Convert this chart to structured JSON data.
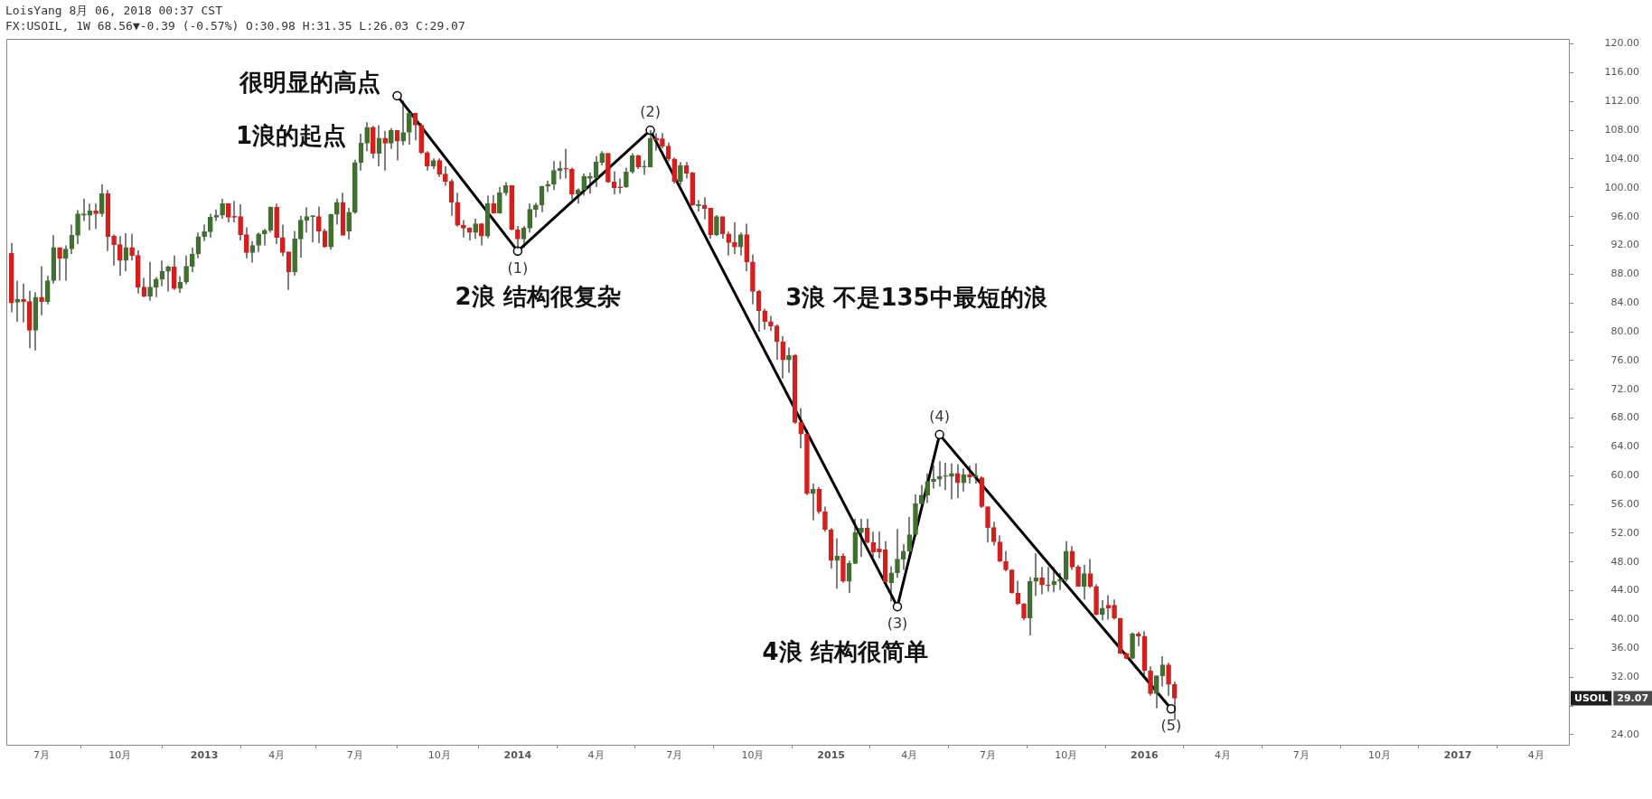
{
  "chart_data": {
    "type": "candlestick",
    "title": "LoisYang 8月 06, 2018 00:37 CST",
    "subtitle": "FX:USOIL, 1W 68.56▼-0.39 (-0.57%) O:30.98 H:31.35 L:26.03 C:29.07",
    "x": [
      "2012-05-28",
      "2012-06-04",
      "2012-06-11",
      "2012-06-18",
      "2012-06-25",
      "2012-07-02",
      "2012-07-09",
      "2012-07-16",
      "2012-07-23",
      "2012-07-30",
      "2012-08-06",
      "2012-08-13",
      "2012-08-20",
      "2012-08-27",
      "2012-09-03",
      "2012-09-10",
      "2012-09-17",
      "2012-09-24",
      "2012-10-01",
      "2012-10-08",
      "2012-10-15",
      "2012-10-22",
      "2012-10-29",
      "2012-11-05",
      "2012-11-12",
      "2012-11-19",
      "2012-11-26",
      "2012-12-03",
      "2012-12-10",
      "2012-12-17",
      "2012-12-24",
      "2012-12-31",
      "2013-01-07",
      "2013-01-14",
      "2013-01-21",
      "2013-01-28",
      "2013-02-04",
      "2013-02-11",
      "2013-02-18",
      "2013-02-25",
      "2013-03-04",
      "2013-03-11",
      "2013-03-18",
      "2013-03-25",
      "2013-04-01",
      "2013-04-08",
      "2013-04-15",
      "2013-04-22",
      "2013-04-29",
      "2013-05-06",
      "2013-05-13",
      "2013-05-20",
      "2013-05-27",
      "2013-06-03",
      "2013-06-10",
      "2013-06-17",
      "2013-06-24",
      "2013-07-01",
      "2013-07-08",
      "2013-07-15",
      "2013-07-22",
      "2013-07-29",
      "2013-08-05",
      "2013-08-12",
      "2013-08-19",
      "2013-08-26",
      "2013-09-02",
      "2013-09-09",
      "2013-09-16",
      "2013-09-23",
      "2013-09-30",
      "2013-10-07",
      "2013-10-14",
      "2013-10-21",
      "2013-10-28",
      "2013-11-04",
      "2013-11-11",
      "2013-11-18",
      "2013-11-25",
      "2013-12-02",
      "2013-12-09",
      "2013-12-16",
      "2013-12-23",
      "2013-12-30",
      "2014-01-06",
      "2014-01-13",
      "2014-01-20",
      "2014-01-27",
      "2014-02-03",
      "2014-02-10",
      "2014-02-17",
      "2014-02-24",
      "2014-03-03",
      "2014-03-10",
      "2014-03-17",
      "2014-03-24",
      "2014-03-31",
      "2014-04-07",
      "2014-04-14",
      "2014-04-21",
      "2014-04-28",
      "2014-05-05",
      "2014-05-12",
      "2014-05-19",
      "2014-05-26",
      "2014-06-02",
      "2014-06-09",
      "2014-06-16",
      "2014-06-23",
      "2014-06-30",
      "2014-07-07",
      "2014-07-14",
      "2014-07-21",
      "2014-07-28",
      "2014-08-04",
      "2014-08-11",
      "2014-08-18",
      "2014-08-25",
      "2014-09-01",
      "2014-09-08",
      "2014-09-15",
      "2014-09-22",
      "2014-09-29",
      "2014-10-06",
      "2014-10-13",
      "2014-10-20",
      "2014-10-27",
      "2014-11-03",
      "2014-11-10",
      "2014-11-17",
      "2014-11-24",
      "2014-12-01",
      "2014-12-08",
      "2014-12-15",
      "2014-12-22",
      "2014-12-29",
      "2015-01-05",
      "2015-01-12",
      "2015-01-19",
      "2015-01-26",
      "2015-02-02",
      "2015-02-09",
      "2015-02-16",
      "2015-02-23",
      "2015-03-02",
      "2015-03-09",
      "2015-03-16",
      "2015-03-23",
      "2015-03-30",
      "2015-04-06",
      "2015-04-13",
      "2015-04-20",
      "2015-04-27",
      "2015-05-04",
      "2015-05-11",
      "2015-05-18",
      "2015-05-25",
      "2015-06-01",
      "2015-06-08",
      "2015-06-15",
      "2015-06-22",
      "2015-06-29",
      "2015-07-06",
      "2015-07-13",
      "2015-07-20",
      "2015-07-27",
      "2015-08-03",
      "2015-08-10",
      "2015-08-17",
      "2015-08-24",
      "2015-08-31",
      "2015-09-07",
      "2015-09-14",
      "2015-09-21",
      "2015-09-28",
      "2015-10-05",
      "2015-10-12",
      "2015-10-19",
      "2015-10-26",
      "2015-11-02",
      "2015-11-09",
      "2015-11-16",
      "2015-11-23",
      "2015-11-30",
      "2015-12-07",
      "2015-12-14",
      "2015-12-21",
      "2015-12-28",
      "2016-01-04",
      "2016-01-11",
      "2016-01-18",
      "2016-01-25",
      "2016-02-01",
      "2016-02-08"
    ],
    "ohlc": [
      [
        90.9,
        92.3,
        82.7,
        84.0
      ],
      [
        84.1,
        87.1,
        81.4,
        84.5
      ],
      [
        84.5,
        86.7,
        81.3,
        84.2
      ],
      [
        84.2,
        85.7,
        77.7,
        80.2
      ],
      [
        80.2,
        85.5,
        77.4,
        84.8
      ],
      [
        84.8,
        89.1,
        82.3,
        84.2
      ],
      [
        84.2,
        87.8,
        83.8,
        87.1
      ],
      [
        87.1,
        93.4,
        86.7,
        91.7
      ],
      [
        91.7,
        91.7,
        87.1,
        90.2
      ],
      [
        90.2,
        92.0,
        87.1,
        91.5
      ],
      [
        91.5,
        94.9,
        90.8,
        93.4
      ],
      [
        93.4,
        96.9,
        92.2,
        96.4
      ],
      [
        96.2,
        98.5,
        95.4,
        96.4
      ],
      [
        96.2,
        97.8,
        94.1,
        96.8
      ],
      [
        96.8,
        97.8,
        94.3,
        96.4
      ],
      [
        96.4,
        100.5,
        96.0,
        99.2
      ],
      [
        99.2,
        99.7,
        91.2,
        93.2
      ],
      [
        93.3,
        93.5,
        89.2,
        92.1
      ],
      [
        92.1,
        93.3,
        87.8,
        89.9
      ],
      [
        89.9,
        93.7,
        88.4,
        91.7
      ],
      [
        91.7,
        93.6,
        89.9,
        90.6
      ],
      [
        90.6,
        91.3,
        85.3,
        86.2
      ],
      [
        86.2,
        87.5,
        84.8,
        84.9
      ],
      [
        84.9,
        89.7,
        84.3,
        86.2
      ],
      [
        86.2,
        87.6,
        84.8,
        87.3
      ],
      [
        87.3,
        89.9,
        86.3,
        88.4
      ],
      [
        88.4,
        89.2,
        85.6,
        89.0
      ],
      [
        89.0,
        90.6,
        85.8,
        86.0
      ],
      [
        86.0,
        87.7,
        85.4,
        86.9
      ],
      [
        86.9,
        90.6,
        86.6,
        89.1
      ],
      [
        89.1,
        91.7,
        88.3,
        90.8
      ],
      [
        90.8,
        93.8,
        90.2,
        93.2
      ],
      [
        93.2,
        94.9,
        92.6,
        93.9
      ],
      [
        93.9,
        96.4,
        93.1,
        95.9
      ],
      [
        95.9,
        97.0,
        95.4,
        96.2
      ],
      [
        96.2,
        98.5,
        95.7,
        97.8
      ],
      [
        97.8,
        97.8,
        95.2,
        95.9
      ],
      [
        96.0,
        98.2,
        95.2,
        95.9
      ],
      [
        96.0,
        97.7,
        92.7,
        93.5
      ],
      [
        93.5,
        94.5,
        90.2,
        91.0
      ],
      [
        91.0,
        92.6,
        89.6,
        92.0
      ],
      [
        92.0,
        93.8,
        91.1,
        93.6
      ],
      [
        93.6,
        94.3,
        92.0,
        94.1
      ],
      [
        94.1,
        97.4,
        93.8,
        97.3
      ],
      [
        97.3,
        97.8,
        92.2,
        93.1
      ],
      [
        93.1,
        94.9,
        90.5,
        91.0
      ],
      [
        91.1,
        91.1,
        85.8,
        88.3
      ],
      [
        88.3,
        94.0,
        87.8,
        92.9
      ],
      [
        92.9,
        96.1,
        90.3,
        95.5
      ],
      [
        95.5,
        97.3,
        93.8,
        96.0
      ],
      [
        96.0,
        96.2,
        92.4,
        96.1
      ],
      [
        96.0,
        97.4,
        92.3,
        94.0
      ],
      [
        94.0,
        94.3,
        91.7,
        91.8
      ],
      [
        91.8,
        96.4,
        91.4,
        96.3
      ],
      [
        96.3,
        98.5,
        94.9,
        98.0
      ],
      [
        98.0,
        99.3,
        93.4,
        93.4
      ],
      [
        94.0,
        97.2,
        92.8,
        96.6
      ],
      [
        96.6,
        103.9,
        96.4,
        103.5
      ],
      [
        103.5,
        107.5,
        102.4,
        106.2
      ],
      [
        106.2,
        109.1,
        105.1,
        108.4
      ],
      [
        108.4,
        108.6,
        104.1,
        104.8
      ],
      [
        104.8,
        108.7,
        103.0,
        106.9
      ],
      [
        106.9,
        107.9,
        102.4,
        106.2
      ],
      [
        106.2,
        108.3,
        105.4,
        108.0
      ],
      [
        108.0,
        108.0,
        103.8,
        106.5
      ],
      [
        106.5,
        112.1,
        105.9,
        107.7
      ],
      [
        107.7,
        110.6,
        106.0,
        110.4
      ],
      [
        110.4,
        110.4,
        106.6,
        108.7
      ],
      [
        108.7,
        109.0,
        104.7,
        104.9
      ],
      [
        104.9,
        105.1,
        102.4,
        103.0
      ],
      [
        103.0,
        104.1,
        102.6,
        103.8
      ],
      [
        103.8,
        104.1,
        101.5,
        101.9
      ],
      [
        101.9,
        103.0,
        100.3,
        100.9
      ],
      [
        100.9,
        101.2,
        96.1,
        98.0
      ],
      [
        98.0,
        99.3,
        94.6,
        94.8
      ],
      [
        94.8,
        95.5,
        93.1,
        94.4
      ],
      [
        94.4,
        94.5,
        92.7,
        93.8
      ],
      [
        93.8,
        95.7,
        92.9,
        95.0
      ],
      [
        95.0,
        95.1,
        92.0,
        93.3
      ],
      [
        93.3,
        98.9,
        93.0,
        97.8
      ],
      [
        97.8,
        99.0,
        96.4,
        96.5
      ],
      [
        96.5,
        100.1,
        96.4,
        99.3
      ],
      [
        99.3,
        100.8,
        98.9,
        100.3
      ],
      [
        100.3,
        100.3,
        94.1,
        94.2
      ],
      [
        94.2,
        94.7,
        91.5,
        92.9
      ],
      [
        92.9,
        94.7,
        91.7,
        94.4
      ],
      [
        94.4,
        97.8,
        93.8,
        97.0
      ],
      [
        97.0,
        97.9,
        95.9,
        97.6
      ],
      [
        97.6,
        100.3,
        96.6,
        100.2
      ],
      [
        100.2,
        101.0,
        99.4,
        100.5
      ],
      [
        100.5,
        103.7,
        99.7,
        102.4
      ],
      [
        102.4,
        103.7,
        101.2,
        102.7
      ],
      [
        102.7,
        105.4,
        101.3,
        102.6
      ],
      [
        102.6,
        102.8,
        98.4,
        99.1
      ],
      [
        99.1,
        99.9,
        97.8,
        99.7
      ],
      [
        99.7,
        102.0,
        98.9,
        101.6
      ],
      [
        101.3,
        102.1,
        99.2,
        101.6
      ],
      [
        101.4,
        104.4,
        100.1,
        103.6
      ],
      [
        103.5,
        105.1,
        103.1,
        104.8
      ],
      [
        104.8,
        104.8,
        100.7,
        100.8
      ],
      [
        100.8,
        102.3,
        99.1,
        100.0
      ],
      [
        100.1,
        101.3,
        99.2,
        100.0
      ],
      [
        100.1,
        102.8,
        100.0,
        102.2
      ],
      [
        102.2,
        104.8,
        102.0,
        104.5
      ],
      [
        104.5,
        104.6,
        102.6,
        102.9
      ],
      [
        102.9,
        103.8,
        101.8,
        103.0
      ],
      [
        102.9,
        108.0,
        102.9,
        106.9
      ],
      [
        106.9,
        107.6,
        105.2,
        106.6
      ],
      [
        106.8,
        107.6,
        105.5,
        105.8
      ],
      [
        105.8,
        106.3,
        103.7,
        104.0
      ],
      [
        104.0,
        104.2,
        100.6,
        100.9
      ],
      [
        100.9,
        103.6,
        100.4,
        103.1
      ],
      [
        103.1,
        103.6,
        101.3,
        102.0
      ],
      [
        102.1,
        102.2,
        97.5,
        97.6
      ],
      [
        97.5,
        98.3,
        96.7,
        97.7
      ],
      [
        97.6,
        98.7,
        95.6,
        97.1
      ],
      [
        97.2,
        97.2,
        92.9,
        93.5
      ],
      [
        93.5,
        96.2,
        93.3,
        96.0
      ],
      [
        96.0,
        96.0,
        92.9,
        93.6
      ],
      [
        93.6,
        93.9,
        90.6,
        92.4
      ],
      [
        92.4,
        95.2,
        90.8,
        91.8
      ],
      [
        91.8,
        93.8,
        90.6,
        93.5
      ],
      [
        93.5,
        95.0,
        88.4,
        89.7
      ],
      [
        89.7,
        90.7,
        83.8,
        85.6
      ],
      [
        85.6,
        85.8,
        80.0,
        82.9
      ],
      [
        82.9,
        83.2,
        80.3,
        81.4
      ],
      [
        81.4,
        82.2,
        80.1,
        80.8
      ],
      [
        80.8,
        81.0,
        76.1,
        78.6
      ],
      [
        78.6,
        79.4,
        73.5,
        76.1
      ],
      [
        76.1,
        77.8,
        74.3,
        76.7
      ],
      [
        76.7,
        76.9,
        67.2,
        67.4
      ],
      [
        67.4,
        69.4,
        63.8,
        65.8
      ],
      [
        65.8,
        66.4,
        57.3,
        57.5
      ],
      [
        57.5,
        58.9,
        53.8,
        58.1
      ],
      [
        58.1,
        58.4,
        54.7,
        55.0
      ],
      [
        55.0,
        55.7,
        52.2,
        52.5
      ],
      [
        52.5,
        52.7,
        47.1,
        48.2
      ],
      [
        48.2,
        51.3,
        44.3,
        48.8
      ],
      [
        48.8,
        49.2,
        45.1,
        45.3
      ],
      [
        45.3,
        48.2,
        43.7,
        47.8
      ],
      [
        47.8,
        54.0,
        47.7,
        52.1
      ],
      [
        52.1,
        54.0,
        48.7,
        52.7
      ],
      [
        52.7,
        54.0,
        50.6,
        50.7
      ],
      [
        50.7,
        52.2,
        48.7,
        49.4
      ],
      [
        49.8,
        52.2,
        48.5,
        49.4
      ],
      [
        49.7,
        50.9,
        44.6,
        45.2
      ],
      [
        45.1,
        47.4,
        42.5,
        46.5
      ],
      [
        46.5,
        52.6,
        45.8,
        48.4
      ],
      [
        48.4,
        50.5,
        46.9,
        49.5
      ],
      [
        49.5,
        54.3,
        49.5,
        51.8
      ],
      [
        51.8,
        57.4,
        51.5,
        56.1
      ],
      [
        56.1,
        58.7,
        55.9,
        57.3
      ],
      [
        57.3,
        60.3,
        56.2,
        59.2
      ],
      [
        59.2,
        61.4,
        58.2,
        59.5
      ],
      [
        59.5,
        62.0,
        58.5,
        59.9
      ],
      [
        59.9,
        61.8,
        58.0,
        60.0
      ],
      [
        59.9,
        61.7,
        56.7,
        60.3
      ],
      [
        60.3,
        61.6,
        56.9,
        59.0
      ],
      [
        59.0,
        61.0,
        57.8,
        60.1
      ],
      [
        60.1,
        61.4,
        58.9,
        59.8
      ],
      [
        59.8,
        61.7,
        58.9,
        60.0
      ],
      [
        59.7,
        59.9,
        55.5,
        55.7
      ],
      [
        55.7,
        55.7,
        50.7,
        52.8
      ],
      [
        52.8,
        53.6,
        50.3,
        50.8
      ],
      [
        50.8,
        51.7,
        48.0,
        48.1
      ],
      [
        48.1,
        49.5,
        46.7,
        46.9
      ],
      [
        46.9,
        47.0,
        43.6,
        43.7
      ],
      [
        43.7,
        45.4,
        42.0,
        42.2
      ],
      [
        42.2,
        42.3,
        39.9,
        40.2
      ],
      [
        40.2,
        45.9,
        37.8,
        45.3
      ],
      [
        45.3,
        49.2,
        43.3,
        45.8
      ],
      [
        45.8,
        47.3,
        43.5,
        44.8
      ],
      [
        44.8,
        47.3,
        43.9,
        44.7
      ],
      [
        44.8,
        47.3,
        43.8,
        45.3
      ],
      [
        45.3,
        46.5,
        44.1,
        45.6
      ],
      [
        45.6,
        50.9,
        45.3,
        49.5
      ],
      [
        49.5,
        50.2,
        46.9,
        47.3
      ],
      [
        47.3,
        47.6,
        44.6,
        44.6
      ],
      [
        44.6,
        47.6,
        42.8,
        46.4
      ],
      [
        46.4,
        48.4,
        44.4,
        44.6
      ],
      [
        44.6,
        44.9,
        40.6,
        40.7
      ],
      [
        40.7,
        42.7,
        39.9,
        41.6
      ],
      [
        42.0,
        43.4,
        40.0,
        41.6
      ],
      [
        42.0,
        42.8,
        40.0,
        40.2
      ],
      [
        40.2,
        40.2,
        35.2,
        35.3
      ],
      [
        35.3,
        35.4,
        34.5,
        34.6
      ],
      [
        34.6,
        38.2,
        34.5,
        38.0
      ],
      [
        38.0,
        38.3,
        36.3,
        37.7
      ],
      [
        37.7,
        38.4,
        32.2,
        32.9
      ],
      [
        32.9,
        33.5,
        29.4,
        29.7
      ],
      [
        29.7,
        32.2,
        27.7,
        32.2
      ],
      [
        32.2,
        34.9,
        30.7,
        33.7
      ],
      [
        33.7,
        34.0,
        29.4,
        31.0
      ],
      [
        30.98,
        31.35,
        26.03,
        29.07
      ]
    ],
    "colors": [
      "#d2201f",
      "#40702f",
      "#d2201f",
      "#d2201f",
      "#40702f",
      "#d2201f",
      "#40702f",
      "#40702f",
      "#d2201f",
      "#40702f",
      "#40702f",
      "#40702f",
      "#40702f",
      "#40702f",
      "#d2201f",
      "#40702f",
      "#d2201f",
      "#d2201f",
      "#d2201f",
      "#40702f",
      "#d2201f",
      "#d2201f",
      "#d2201f",
      "#40702f",
      "#40702f",
      "#40702f",
      "#40702f",
      "#d2201f",
      "#40702f",
      "#40702f",
      "#40702f",
      "#40702f",
      "#40702f",
      "#40702f",
      "#40702f",
      "#40702f",
      "#d2201f",
      "#d2201f",
      "#d2201f",
      "#d2201f",
      "#40702f",
      "#40702f",
      "#40702f",
      "#40702f",
      "#d2201f",
      "#d2201f",
      "#d2201f",
      "#40702f",
      "#40702f",
      "#40702f",
      "#40702f",
      "#d2201f",
      "#d2201f",
      "#40702f",
      "#40702f",
      "#d2201f",
      "#40702f",
      "#40702f",
      "#40702f",
      "#40702f",
      "#d2201f",
      "#40702f",
      "#d2201f",
      "#40702f",
      "#d2201f",
      "#40702f",
      "#40702f",
      "#d2201f",
      "#d2201f",
      "#d2201f",
      "#40702f",
      "#d2201f",
      "#d2201f",
      "#d2201f",
      "#d2201f",
      "#d2201f",
      "#d2201f",
      "#40702f",
      "#d2201f",
      "#40702f",
      "#d2201f",
      "#40702f",
      "#40702f",
      "#d2201f",
      "#d2201f",
      "#40702f",
      "#40702f",
      "#40702f",
      "#40702f",
      "#40702f",
      "#40702f",
      "#40702f",
      "#d2201f",
      "#d2201f",
      "#40702f",
      "#40702f",
      "#40702f",
      "#40702f",
      "#40702f",
      "#d2201f",
      "#d2201f",
      "#d2201f",
      "#40702f",
      "#40702f",
      "#d2201f",
      "#40702f",
      "#40702f",
      "#d2201f",
      "#d2201f",
      "#d2201f",
      "#d2201f",
      "#40702f",
      "#d2201f",
      "#d2201f",
      "#40702f",
      "#d2201f",
      "#d2201f",
      "#40702f",
      "#d2201f",
      "#d2201f",
      "#d2201f",
      "#40702f",
      "#d2201f",
      "#d2201f",
      "#d2201f",
      "#d2201f",
      "#d2201f",
      "#d2201f",
      "#d2201f",
      "#40702f",
      "#d2201f",
      "#d2201f",
      "#d2201f",
      "#40702f",
      "#d2201f",
      "#d2201f",
      "#d2201f",
      "#40702f",
      "#d2201f",
      "#40702f",
      "#40702f",
      "#40702f",
      "#d2201f",
      "#d2201f",
      "#d2201f",
      "#d2201f",
      "#40702f",
      "#40702f",
      "#40702f",
      "#40702f",
      "#40702f",
      "#40702f",
      "#40702f",
      "#40702f",
      "#40702f",
      "#40702f",
      "#40702f",
      "#d2201f",
      "#40702f",
      "#d2201f",
      "#40702f",
      "#d2201f",
      "#d2201f",
      "#d2201f",
      "#d2201f",
      "#d2201f",
      "#d2201f",
      "#d2201f",
      "#d2201f",
      "#40702f",
      "#40702f",
      "#d2201f",
      "#d2201f",
      "#40702f",
      "#40702f",
      "#40702f",
      "#d2201f",
      "#d2201f",
      "#40702f",
      "#d2201f",
      "#d2201f",
      "#40702f",
      "#d2201f",
      "#d2201f",
      "#d2201f",
      "#d2201f",
      "#40702f",
      "#d2201f",
      "#d2201f",
      "#d2201f",
      "#40702f",
      "#40702f",
      "#d2201f",
      "#d2201f"
    ],
    "series": [
      {
        "type": "line",
        "x": [
          "2013-08-19",
          "2014-01-06",
          "2014-06-09",
          "2015-03-23",
          "2015-05-11",
          "2016-02-04"
        ],
        "values": [
          112.8,
          91.2,
          108.0,
          41.8,
          65.7,
          27.6
        ],
        "color": "#000000",
        "marker": "circle"
      }
    ],
    "xlim": [
      "2012-05-22",
      "2017-05-12"
    ],
    "ylim": [
      22.6,
      120.7
    ],
    "xticks": [
      {
        "value": "2012-07-02",
        "label": "7月"
      },
      {
        "value": "2012-10-01",
        "label": "10月"
      },
      {
        "value": "2013-01-07",
        "label": "2013"
      },
      {
        "value": "2013-04-01",
        "label": "4月"
      },
      {
        "value": "2013-07-01",
        "label": "7月"
      },
      {
        "value": "2013-10-07",
        "label": "10月"
      },
      {
        "value": "2014-01-06",
        "label": "2014"
      },
      {
        "value": "2014-04-07",
        "label": "4月"
      },
      {
        "value": "2014-07-07",
        "label": "7月"
      },
      {
        "value": "2014-10-06",
        "label": "10月"
      },
      {
        "value": "2015-01-05",
        "label": "2015"
      },
      {
        "value": "2015-04-06",
        "label": "4月"
      },
      {
        "value": "2015-07-06",
        "label": "7月"
      },
      {
        "value": "2015-10-05",
        "label": "10月"
      },
      {
        "value": "2016-01-04",
        "label": "2016"
      },
      {
        "value": "2016-04-04",
        "label": "4月"
      },
      {
        "value": "2016-07-04",
        "label": "7月"
      },
      {
        "value": "2016-10-03",
        "label": "10月"
      },
      {
        "value": "2017-01-02",
        "label": "2017"
      },
      {
        "value": "2017-04-03",
        "label": "4月"
      }
    ],
    "yticks": [
      {
        "value": 24,
        "label": "24.00"
      },
      {
        "value": 28,
        "label": null
      },
      {
        "value": 32,
        "label": "32.00"
      },
      {
        "value": 36,
        "label": "36.00"
      },
      {
        "value": 40,
        "label": "40.00"
      },
      {
        "value": 44,
        "label": "44.00"
      },
      {
        "value": 48,
        "label": "48.00"
      },
      {
        "value": 52,
        "label": "52.00"
      },
      {
        "value": 56,
        "label": "56.00"
      },
      {
        "value": 60,
        "label": "60.00"
      },
      {
        "value": 64,
        "label": "64.00"
      },
      {
        "value": 68,
        "label": "68.00"
      },
      {
        "value": 72,
        "label": "72.00"
      },
      {
        "value": 76,
        "label": "76.00"
      },
      {
        "value": 80,
        "label": "80.00"
      },
      {
        "value": 84,
        "label": "84.00"
      },
      {
        "value": 88,
        "label": "88.00"
      },
      {
        "value": 92,
        "label": "92.00"
      },
      {
        "value": 96,
        "label": "96.00"
      },
      {
        "value": 100,
        "label": "100.00"
      },
      {
        "value": 104,
        "label": "104.00"
      },
      {
        "value": 108,
        "label": "108.00"
      },
      {
        "value": 112,
        "label": "112.00"
      },
      {
        "value": 116,
        "label": "116.00"
      },
      {
        "value": 120,
        "label": "120.00"
      }
    ],
    "annotations": [
      "很明显的高点",
      "1浪的起点",
      "2浪 结构很复杂",
      "3浪 不是135中最短的浪",
      "4浪 结构很简单",
      {
        "text": "(1)",
        "x": "2014-01-06",
        "y": 91.2
      },
      {
        "text": "(2)",
        "x": "2014-06-09",
        "y": 108.0
      },
      {
        "text": "(3)",
        "x": "2015-03-23",
        "y": 41.8
      },
      {
        "text": "(4)",
        "x": "2015-05-11",
        "y": 65.7
      },
      {
        "text": "(5)",
        "x": "2016-02-04",
        "y": 27.6
      },
      "USOIL",
      "29.07"
    ]
  }
}
